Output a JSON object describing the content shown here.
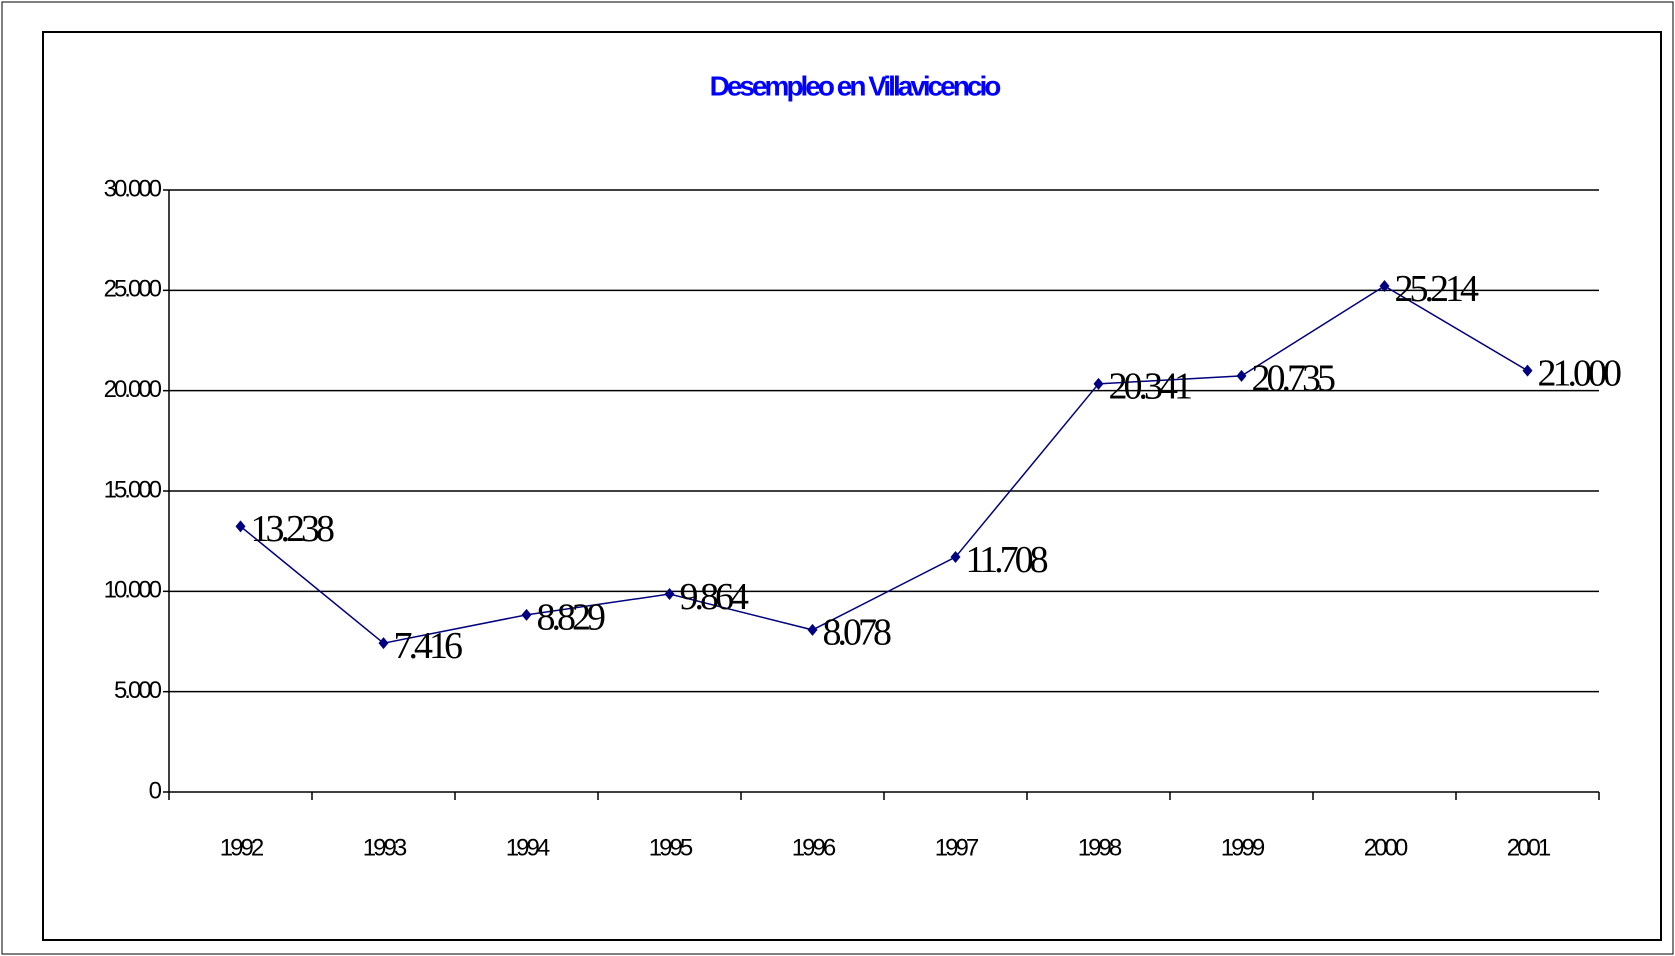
{
  "chart_data": {
    "type": "line",
    "title": "Desempleo en Villavicencio",
    "categories": [
      "1992",
      "1993",
      "1994",
      "1995",
      "1996",
      "1997",
      "1998",
      "1999",
      "2000",
      "2001"
    ],
    "series": [
      {
        "name": "Desempleo",
        "color": "#000080",
        "values": [
          13238,
          7416,
          8829,
          9864,
          8078,
          11708,
          20341,
          20735,
          25214,
          21000
        ],
        "value_labels": [
          "13.238",
          "7.416",
          "8.829",
          "9.864",
          "8.078",
          "11.708",
          "20.341",
          "20.735",
          "25.214",
          "21.000"
        ]
      }
    ],
    "ylim": [
      0,
      30000
    ],
    "yticks": [
      0,
      {
        "value": 5000,
        "label": "5.000"
      },
      {
        "value": 10000,
        "label": "10.000"
      },
      {
        "value": 15000,
        "label": "15.000"
      },
      {
        "value": 20000,
        "label": "20.000"
      },
      {
        "value": 25000,
        "label": "25.000"
      },
      {
        "value": 30000,
        "label": "30.000"
      }
    ],
    "grid": true
  }
}
